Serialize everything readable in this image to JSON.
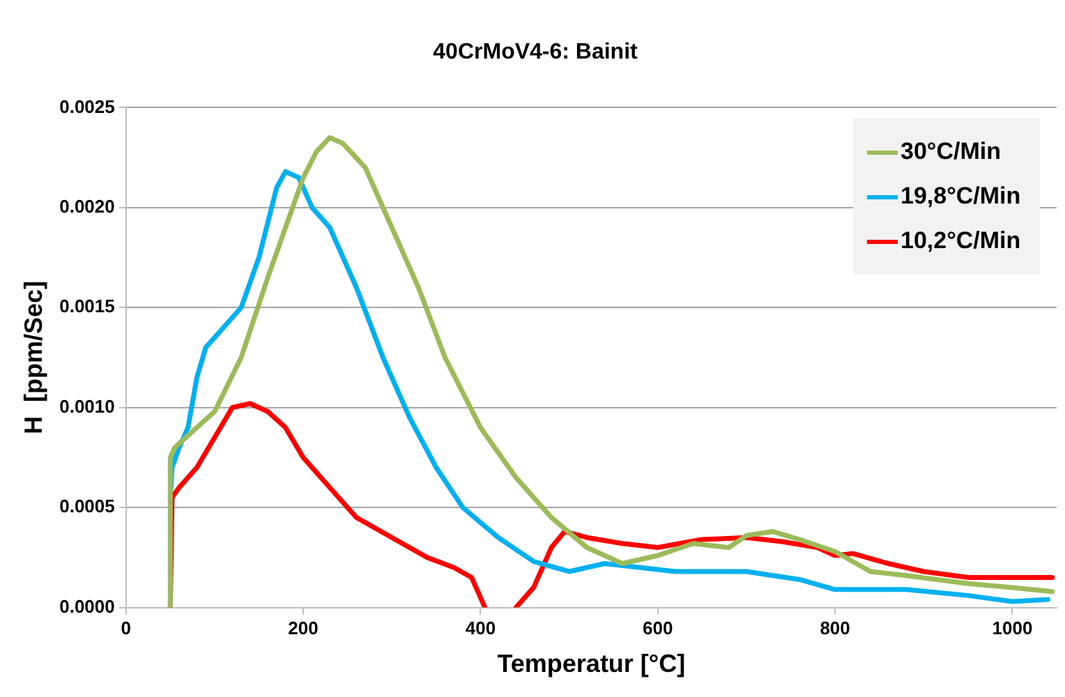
{
  "chart_data": {
    "type": "line",
    "title": "40CrMoV4-6: Bainit",
    "xlabel": "Temperatur [°C]",
    "ylabel": "H  [ppm/Sec]",
    "xlim": [
      0,
      1050
    ],
    "xticks": [
      0,
      200,
      400,
      600,
      800,
      1000
    ],
    "ylim": [
      0,
      0.0025
    ],
    "yticks": [
      {
        "value": 0,
        "label": "0.0000"
      },
      0.0005,
      {
        "value": 0.001,
        "label": "0.0010"
      },
      0.0015,
      {
        "value": 0.002,
        "label": "0.0020"
      },
      0.0025
    ],
    "grid": "y",
    "legend": "top right",
    "marker": "none",
    "line_style": "solid",
    "series": [
      {
        "name": "30°C/Min",
        "color": "#9bbb59",
        "x": [
          50,
          50,
          55,
          75,
          100,
          130,
          160,
          180,
          200,
          215,
          230,
          245,
          270,
          300,
          330,
          360,
          400,
          440,
          480,
          520,
          560,
          600,
          640,
          680,
          700,
          730,
          760,
          800,
          840,
          880,
          950,
          1000,
          1045
        ],
        "values": [
          0,
          0.00075,
          0.0008,
          0.00088,
          0.00098,
          0.00125,
          0.00165,
          0.0019,
          0.00215,
          0.00228,
          0.00235,
          0.00232,
          0.0022,
          0.0019,
          0.0016,
          0.00125,
          0.0009,
          0.00065,
          0.00045,
          0.0003,
          0.00022,
          0.00026,
          0.00032,
          0.0003,
          0.00036,
          0.00038,
          0.00034,
          0.00028,
          0.00018,
          0.00016,
          0.00012,
          0.0001,
          8e-05
        ]
      },
      {
        "name": "19,8°C/Min",
        "color": "#00b0f0",
        "x": [
          50,
          52,
          60,
          70,
          80,
          90,
          110,
          130,
          150,
          170,
          180,
          195,
          210,
          230,
          260,
          290,
          320,
          350,
          380,
          420,
          460,
          500,
          540,
          580,
          620,
          700,
          760,
          800,
          880,
          950,
          1000,
          1040
        ],
        "values": [
          0.00055,
          0.0007,
          0.0008,
          0.0009,
          0.00115,
          0.0013,
          0.0014,
          0.0015,
          0.00175,
          0.0021,
          0.00218,
          0.00215,
          0.002,
          0.0019,
          0.0016,
          0.00125,
          0.00095,
          0.0007,
          0.0005,
          0.00035,
          0.00023,
          0.00018,
          0.00022,
          0.0002,
          0.00018,
          0.00018,
          0.00014,
          9e-05,
          9e-05,
          6e-05,
          3e-05,
          4e-05
        ]
      },
      {
        "name": "10,2°C/Min",
        "color": "#ff0000",
        "x": [
          50,
          52,
          60,
          80,
          100,
          120,
          140,
          160,
          180,
          200,
          230,
          260,
          300,
          340,
          370,
          390,
          405,
          420,
          440,
          460,
          480,
          495,
          520,
          560,
          600,
          650,
          700,
          740,
          780,
          800,
          820,
          860,
          900,
          950,
          1045
        ],
        "values": [
          0,
          0.00055,
          0.0006,
          0.0007,
          0.00085,
          0.001,
          0.00102,
          0.00098,
          0.0009,
          0.00075,
          0.0006,
          0.00045,
          0.00035,
          0.00025,
          0.0002,
          0.00015,
          0,
          null,
          0,
          0.0001,
          0.0003,
          0.00038,
          0.00035,
          0.00032,
          0.0003,
          0.00034,
          0.00035,
          0.00033,
          0.0003,
          0.00026,
          0.00027,
          0.00022,
          0.00018,
          0.00015,
          0.00015
        ]
      }
    ]
  }
}
